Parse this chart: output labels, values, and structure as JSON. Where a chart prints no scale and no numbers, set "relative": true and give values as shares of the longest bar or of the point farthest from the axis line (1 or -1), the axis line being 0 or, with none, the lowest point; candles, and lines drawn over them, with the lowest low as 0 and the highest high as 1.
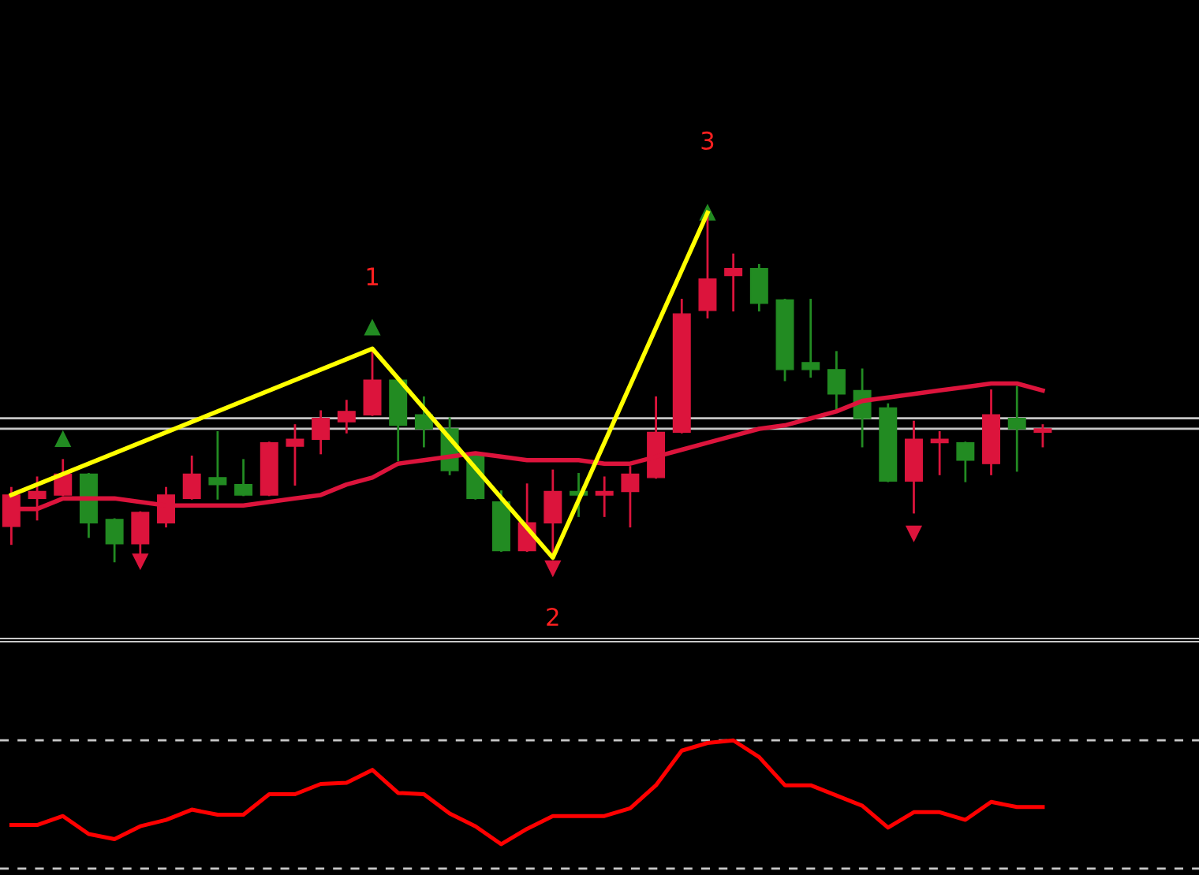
{
  "chart_data": [
    {
      "type": "candlestick",
      "relative": true,
      "categories": [
        null,
        null,
        null,
        null,
        null,
        null,
        null,
        null,
        null,
        null,
        null,
        null,
        null,
        null,
        null,
        null,
        null,
        null,
        null,
        null,
        null,
        null,
        null,
        null,
        null,
        null,
        null,
        null,
        null,
        null,
        null,
        null,
        null,
        null,
        null,
        null,
        null,
        null,
        null,
        null,
        null
      ],
      "ohlc": [
        [
          0.1,
          0.21,
          0.05,
          0.19
        ],
        [
          0.18,
          0.24,
          0.12,
          0.2
        ],
        [
          0.19,
          0.29,
          0.19,
          0.25
        ],
        [
          0.25,
          0.25,
          0.07,
          0.11
        ],
        [
          0.12,
          0.12,
          0,
          0.05
        ],
        [
          0.05,
          0.14,
          0,
          0.14
        ],
        [
          0.11,
          0.21,
          0.1,
          0.19
        ],
        [
          0.18,
          0.3,
          0.18,
          0.25
        ],
        [
          0.24,
          0.37,
          0.18,
          0.22
        ],
        [
          0.22,
          0.29,
          0.19,
          0.19
        ],
        [
          0.19,
          0.34,
          0.19,
          0.34
        ],
        [
          0.33,
          0.39,
          0.22,
          0.35
        ],
        [
          0.35,
          0.43,
          0.31,
          0.41
        ],
        [
          0.4,
          0.46,
          0.37,
          0.43
        ],
        [
          0.42,
          0.61,
          0.42,
          0.52
        ],
        [
          0.52,
          0.52,
          0.29,
          0.39
        ],
        [
          0.42,
          0.47,
          0.33,
          0.38
        ],
        [
          0.38,
          0.41,
          0.25,
          0.26
        ],
        [
          0.31,
          0.31,
          0.18,
          0.18
        ],
        [
          0.17,
          0.2,
          0.03,
          0.03
        ],
        [
          0.03,
          0.22,
          0.03,
          0.11
        ],
        [
          0.11,
          0.26,
          0.01,
          0.2
        ],
        [
          0.2,
          0.25,
          0.13,
          0.19
        ],
        [
          0.19,
          0.24,
          0.13,
          0.2
        ],
        [
          0.2,
          0.27,
          0.1,
          0.25
        ],
        [
          0.24,
          0.47,
          0.24,
          0.37
        ],
        [
          0.37,
          0.75,
          0.37,
          0.71
        ],
        [
          0.72,
          1,
          0.7,
          0.81
        ],
        [
          0.82,
          0.88,
          0.72,
          0.84
        ],
        [
          0.84,
          0.85,
          0.72,
          0.74
        ],
        [
          0.75,
          0.75,
          0.52,
          0.55
        ],
        [
          0.57,
          0.75,
          0.53,
          0.55
        ],
        [
          0.55,
          0.6,
          0.43,
          0.48
        ],
        [
          0.49,
          0.55,
          0.33,
          0.41
        ],
        [
          0.44,
          0.45,
          0.23,
          0.23
        ],
        [
          0.23,
          0.4,
          0.14,
          0.35
        ],
        [
          0.34,
          0.37,
          0.25,
          0.35
        ],
        [
          0.34,
          0.34,
          0.23,
          0.29
        ],
        [
          0.28,
          0.49,
          0.25,
          0.42
        ],
        [
          0.41,
          0.5,
          0.26,
          0.38
        ],
        [
          0.37,
          0.39,
          0.33,
          0.38
        ]
      ],
      "colors": [
        "#dc143c",
        "#dc143c",
        "#dc143c",
        "#228b22",
        "#228b22",
        "#dc143c",
        "#dc143c",
        "#dc143c",
        "#228b22",
        "#228b22",
        "#dc143c",
        "#dc143c",
        "#dc143c",
        "#dc143c",
        "#dc143c",
        "#228b22",
        "#228b22",
        "#228b22",
        "#228b22",
        "#228b22",
        "#dc143c",
        "#dc143c",
        "#228b22",
        "#dc143c",
        "#dc143c",
        "#dc143c",
        "#dc143c",
        "#dc143c",
        "#dc143c",
        "#228b22",
        "#228b22",
        "#228b22",
        "#228b22",
        "#228b22",
        "#228b22",
        "#dc143c",
        "#dc143c",
        "#228b22",
        "#dc143c",
        "#228b22",
        "#dc143c"
      ],
      "series": [
        {
          "type": "line",
          "color": "#dc143c",
          "values": [
            0.15,
            0.15,
            0.18,
            0.18,
            0.18,
            0.17,
            0.16,
            0.16,
            0.16,
            0.16,
            0.17,
            0.18,
            0.19,
            0.22,
            0.24,
            0.28,
            0.29,
            0.3,
            0.31,
            0.3,
            0.29,
            0.29,
            0.29,
            0.28,
            0.28,
            0.3,
            0.32,
            0.34,
            0.36,
            0.38,
            0.39,
            0.41,
            0.43,
            0.46,
            0.47,
            0.48,
            0.49,
            0.5,
            0.51,
            0.51,
            0.49
          ]
        },
        {
          "type": "line",
          "color": "#ffff00",
          "values": [
            0.19,
            null,
            null,
            null,
            null,
            null,
            null,
            null,
            null,
            null,
            null,
            null,
            null,
            null,
            0.61,
            null,
            null,
            null,
            null,
            null,
            null,
            0.01,
            null,
            null,
            null,
            null,
            null,
            1,
            null,
            null,
            null,
            null,
            null,
            null,
            null,
            null,
            null,
            null,
            null,
            null,
            null
          ]
        },
        {
          "type": "scatter",
          "marker": "triangle",
          "color": "#228b22",
          "values": [
            null,
            null,
            0.35,
            null,
            null,
            null,
            null,
            null,
            null,
            null,
            null,
            null,
            null,
            null,
            0.67,
            null,
            null,
            null,
            null,
            null,
            null,
            null,
            null,
            null,
            null,
            null,
            null,
            1,
            null,
            null,
            null,
            null,
            null,
            null,
            null,
            null,
            null,
            null,
            null,
            null,
            null
          ]
        },
        {
          "type": "scatter",
          "marker": "triangle",
          "color": "#dc143c",
          "values": [
            null,
            null,
            null,
            null,
            null,
            0,
            null,
            null,
            null,
            null,
            null,
            null,
            null,
            null,
            null,
            null,
            null,
            null,
            null,
            null,
            null,
            -0.02,
            null,
            null,
            null,
            null,
            null,
            null,
            null,
            null,
            null,
            null,
            null,
            null,
            null,
            0.08,
            null,
            null,
            null,
            null,
            null
          ]
        }
      ],
      "annotations": [
        {
          "text": "1",
          "y": 0.61
        },
        {
          "text": "2",
          "y": 0.01
        },
        {
          "text": "3",
          "y": 1
        }
      ],
      "ref_lines": [
        {
          "axis": "y",
          "value": 0.41,
          "color": "#c8c8c8"
        },
        {
          "axis": "y",
          "value": 0.38,
          "color": "#c8c8c8"
        }
      ]
    },
    {
      "type": "line",
      "relative": true,
      "categories": [
        null,
        null,
        null,
        null,
        null,
        null,
        null,
        null,
        null,
        null,
        null,
        null,
        null,
        null,
        null,
        null,
        null,
        null,
        null,
        null,
        null,
        null,
        null,
        null,
        null,
        null,
        null,
        null,
        null,
        null,
        null,
        null,
        null,
        null,
        null,
        null,
        null,
        null,
        null,
        null,
        null
      ],
      "series": [
        {
          "color": "#ff0000",
          "values": [
            0.34,
            0.34,
            0.41,
            0.27,
            0.23,
            0.33,
            0.38,
            0.46,
            0.42,
            0.42,
            0.58,
            0.58,
            0.66,
            0.67,
            0.77,
            0.59,
            0.58,
            0.43,
            0.33,
            0.19,
            0.31,
            0.41,
            0.41,
            0.41,
            0.47,
            0.65,
            0.92,
            0.98,
            1,
            0.87,
            0.65,
            0.65,
            0.57,
            0.49,
            0.32,
            0.44,
            0.44,
            0.38,
            0.52,
            0.48,
            0.48
          ]
        }
      ],
      "ref_lines": [
        {
          "axis": "y",
          "value": 1.0,
          "color": "#c8c8c8",
          "line_style": "dashed"
        },
        {
          "axis": "y",
          "value": 0,
          "color": "#c8c8c8",
          "line_style": "dashed"
        }
      ]
    }
  ]
}
